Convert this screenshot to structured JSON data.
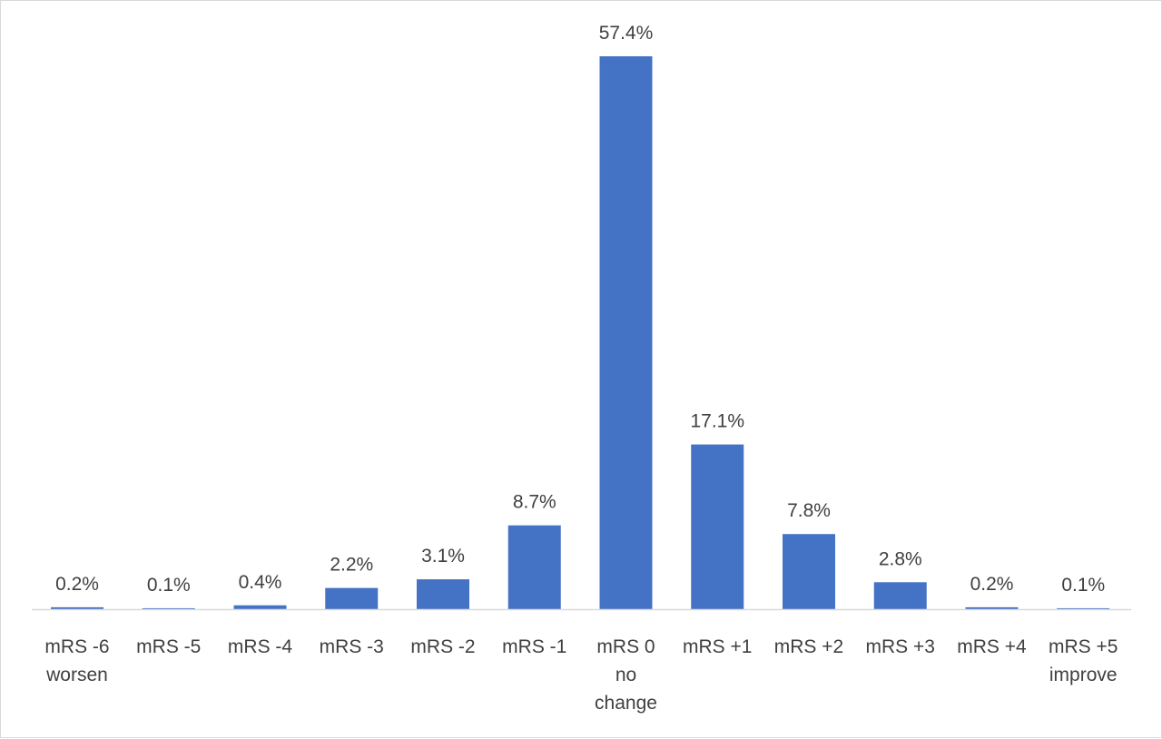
{
  "chart_data": {
    "type": "bar",
    "title": "",
    "xlabel": "",
    "ylabel": "",
    "ylim": [
      0,
      57.4
    ],
    "grid": false,
    "legend": "none",
    "bar_color": "#4472C4",
    "axis_color": "#d9d9d9",
    "text_color": "#404040",
    "categories": [
      [
        "mRS -6",
        "worsen"
      ],
      [
        "mRS -5"
      ],
      [
        "mRS -4"
      ],
      [
        "mRS -3"
      ],
      [
        "mRS -2"
      ],
      [
        "mRS -1"
      ],
      [
        "mRS 0",
        "no",
        "change"
      ],
      [
        "mRS +1"
      ],
      [
        "mRS +2"
      ],
      [
        "mRS +3"
      ],
      [
        "mRS +4"
      ],
      [
        "mRS +5",
        "improve"
      ]
    ],
    "values": [
      0.2,
      0.1,
      0.4,
      2.2,
      3.1,
      8.7,
      57.4,
      17.1,
      7.8,
      2.8,
      0.2,
      0.1
    ],
    "data_labels": [
      "0.2%",
      "0.1%",
      "0.4%",
      "2.2%",
      "3.1%",
      "8.7%",
      "57.4%",
      "17.1%",
      "7.8%",
      "2.8%",
      "0.2%",
      "0.1%"
    ]
  }
}
